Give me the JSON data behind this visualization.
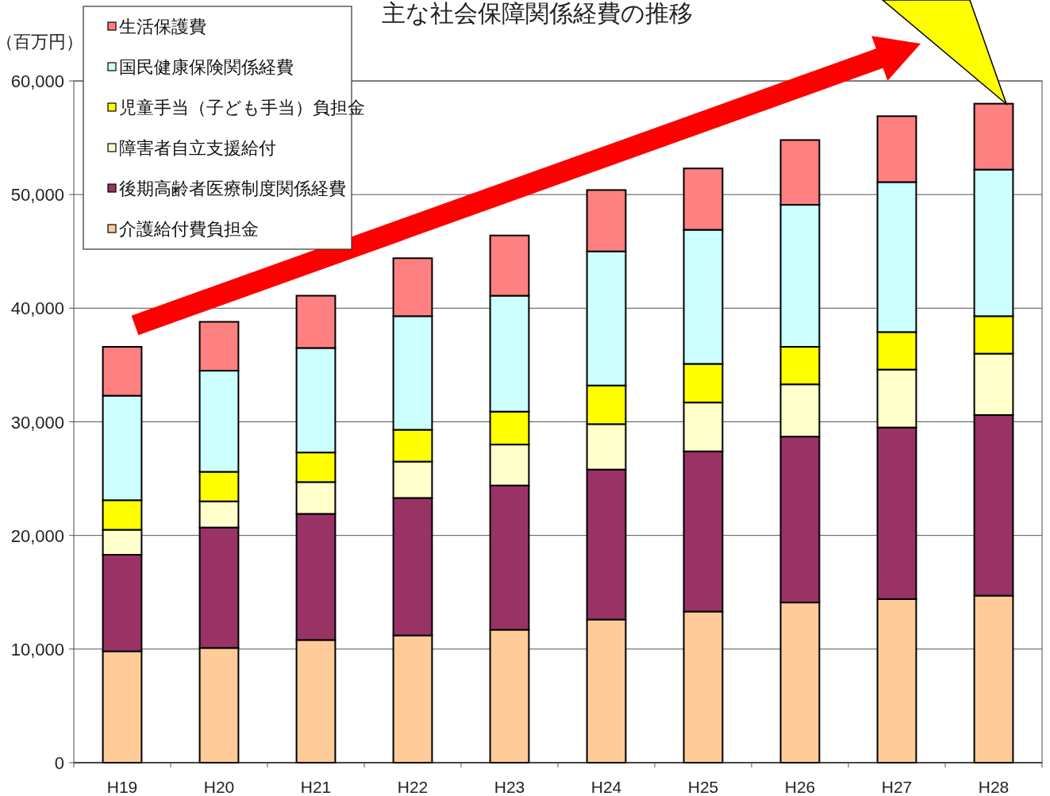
{
  "chart_data": {
    "type": "bar",
    "stacked": true,
    "title": "主な社会保障関係経費の推移",
    "ylabel": "（百万円）",
    "categories": [
      "H19",
      "H20",
      "H21",
      "H22",
      "H23",
      "H24",
      "H25",
      "H26",
      "H27",
      "H28"
    ],
    "series": [
      {
        "name": "介護給付費負担金",
        "color": "#ffcc99",
        "values": [
          9800,
          10100,
          10800,
          11200,
          11700,
          12600,
          13300,
          14100,
          14400,
          14700
        ]
      },
      {
        "name": "後期高齢者医療制度関係経費",
        "color": "#993366",
        "values": [
          8500,
          10600,
          11100,
          12100,
          12700,
          13200,
          14100,
          14600,
          15100,
          15900
        ]
      },
      {
        "name": "障害者自立支援給付",
        "color": "#ffffcc",
        "values": [
          2200,
          2300,
          2800,
          3200,
          3600,
          4000,
          4300,
          4600,
          5100,
          5400
        ]
      },
      {
        "name": "児童手当（子ども手当）負担金",
        "color": "#ffff00",
        "values": [
          2600,
          2600,
          2600,
          2800,
          2900,
          3400,
          3400,
          3300,
          3300,
          3300
        ]
      },
      {
        "name": "国民健康保険関係経費",
        "color": "#ccffff",
        "values": [
          9200,
          8900,
          9200,
          10000,
          10200,
          11800,
          11800,
          12500,
          13200,
          12900
        ]
      },
      {
        "name": "生活保護費",
        "color": "#ff8080",
        "values": [
          4300,
          4300,
          4600,
          5100,
          5300,
          5400,
          5400,
          5700,
          5800,
          5800
        ]
      }
    ],
    "ylim": [
      0,
      60000
    ],
    "yticks": [
      0,
      {
        "value": 10000,
        "label": "10,000"
      },
      {
        "value": 20000,
        "label": "20,000"
      },
      {
        "value": 30000,
        "label": "30,000"
      },
      {
        "value": 40000,
        "label": "40,000"
      },
      {
        "value": 50000,
        "label": "50,000"
      },
      {
        "value": 60000,
        "label": "60,000"
      }
    ],
    "grid": "y",
    "legend": "top left"
  }
}
